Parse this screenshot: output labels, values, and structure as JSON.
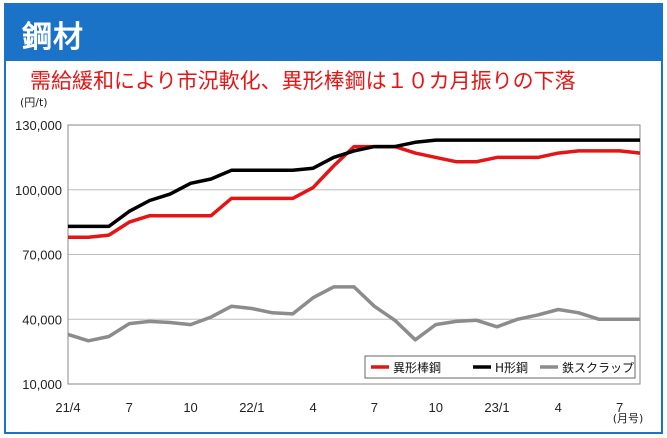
{
  "header": {
    "title": "鋼材"
  },
  "headline": "需給緩和により市況軟化、異形棒鋼は１０カ月振りの下落",
  "colors": {
    "accent": "#1a73c7",
    "headline": "#e31515"
  },
  "chart_data": {
    "type": "line",
    "ylabel": "(円/t)",
    "xlabel": "(月号)",
    "ylim": [
      10000,
      130000
    ],
    "yticks": [
      10000,
      40000,
      70000,
      100000,
      130000
    ],
    "ytick_labels": [
      "10,000",
      "40,000",
      "70,000",
      "100,000",
      "130,000"
    ],
    "xtick_labels": [
      "21/4",
      "7",
      "10",
      "22/1",
      "4",
      "7",
      "10",
      "23/1",
      "4",
      "7"
    ],
    "x": [
      "21/4",
      "21/5",
      "21/6",
      "21/7",
      "21/8",
      "21/9",
      "21/10",
      "21/11",
      "21/12",
      "22/1",
      "22/2",
      "22/3",
      "22/4",
      "22/5",
      "22/6",
      "22/7",
      "22/8",
      "22/9",
      "22/10",
      "22/11",
      "22/12",
      "23/1",
      "23/2",
      "23/3",
      "23/4",
      "23/5",
      "23/6",
      "23/7",
      "23/8"
    ],
    "grid": "horizontal",
    "legend_position": "bottom-right",
    "series": [
      {
        "name": "異形棒鋼",
        "color": "#e31515",
        "values": [
          78000,
          78000,
          79000,
          85000,
          88000,
          88000,
          88000,
          88000,
          96000,
          96000,
          96000,
          96000,
          101000,
          111000,
          120000,
          120000,
          120000,
          117000,
          115000,
          113000,
          113000,
          115000,
          115000,
          115000,
          117000,
          118000,
          118000,
          118000,
          117000
        ]
      },
      {
        "name": "H形鋼",
        "color": "#000000",
        "values": [
          83000,
          83000,
          83000,
          90000,
          95000,
          98000,
          103000,
          105000,
          109000,
          109000,
          109000,
          109000,
          110000,
          115000,
          118000,
          120000,
          120000,
          122000,
          123000,
          123000,
          123000,
          123000,
          123000,
          123000,
          123000,
          123000,
          123000,
          123000,
          123000
        ]
      },
      {
        "name": "鉄スクラップ",
        "color": "#8c8c8c",
        "values": [
          33000,
          30000,
          32000,
          38000,
          39000,
          38500,
          37500,
          41000,
          46000,
          45000,
          43000,
          42500,
          50000,
          55000,
          55000,
          46000,
          39500,
          30500,
          37500,
          39000,
          39500,
          36500,
          40000,
          42000,
          44500,
          43000,
          40000,
          40000,
          40000
        ]
      }
    ]
  }
}
